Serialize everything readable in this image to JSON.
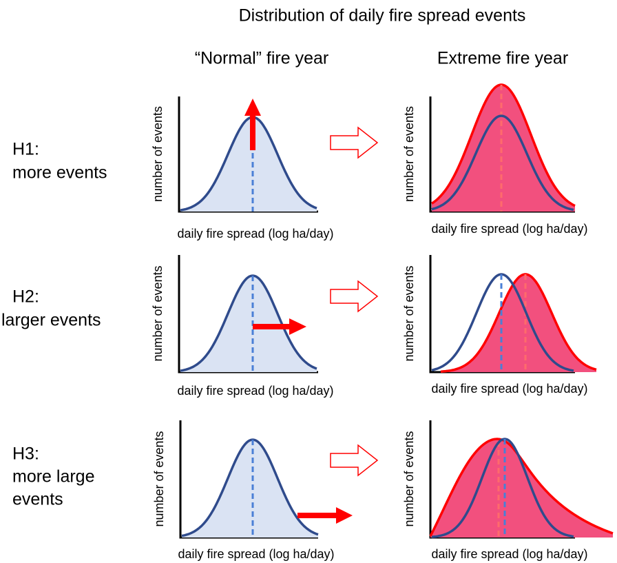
{
  "title": "Distribution of daily fire spread events",
  "columns": [
    "“Normal” fire year",
    "Extreme fire year"
  ],
  "rows": [
    {
      "id": "H1:",
      "label_lines": [
        "more events"
      ]
    },
    {
      "id": "H2:",
      "label_lines": [
        "larger events"
      ]
    },
    {
      "id": "H3:",
      "label_lines": [
        "more large",
        "events"
      ]
    }
  ],
  "axis": {
    "y_label": "number of events",
    "x_label": "daily fire spread (log ha/day)"
  }
}
